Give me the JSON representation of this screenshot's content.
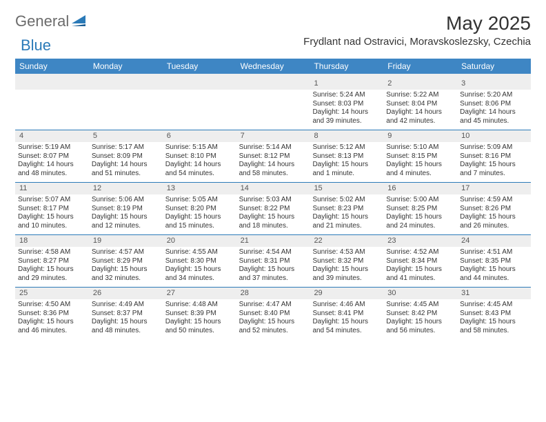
{
  "brand": {
    "text_a": "General",
    "text_b": "Blue"
  },
  "title": "May 2025",
  "location": "Frydlant nad Ostravici, Moravskoslezsky, Czechia",
  "colors": {
    "header_bg": "#3e86c4",
    "header_text": "#ffffff",
    "rule": "#2a7ab8",
    "daynum_bg": "#eeeeee",
    "body_text": "#333333"
  },
  "day_labels": [
    "Sunday",
    "Monday",
    "Tuesday",
    "Wednesday",
    "Thursday",
    "Friday",
    "Saturday"
  ],
  "weeks": [
    [
      {
        "n": "",
        "sunrise": "",
        "sunset": "",
        "daylight": ""
      },
      {
        "n": "",
        "sunrise": "",
        "sunset": "",
        "daylight": ""
      },
      {
        "n": "",
        "sunrise": "",
        "sunset": "",
        "daylight": ""
      },
      {
        "n": "",
        "sunrise": "",
        "sunset": "",
        "daylight": ""
      },
      {
        "n": "1",
        "sunrise": "Sunrise: 5:24 AM",
        "sunset": "Sunset: 8:03 PM",
        "daylight": "Daylight: 14 hours and 39 minutes."
      },
      {
        "n": "2",
        "sunrise": "Sunrise: 5:22 AM",
        "sunset": "Sunset: 8:04 PM",
        "daylight": "Daylight: 14 hours and 42 minutes."
      },
      {
        "n": "3",
        "sunrise": "Sunrise: 5:20 AM",
        "sunset": "Sunset: 8:06 PM",
        "daylight": "Daylight: 14 hours and 45 minutes."
      }
    ],
    [
      {
        "n": "4",
        "sunrise": "Sunrise: 5:19 AM",
        "sunset": "Sunset: 8:07 PM",
        "daylight": "Daylight: 14 hours and 48 minutes."
      },
      {
        "n": "5",
        "sunrise": "Sunrise: 5:17 AM",
        "sunset": "Sunset: 8:09 PM",
        "daylight": "Daylight: 14 hours and 51 minutes."
      },
      {
        "n": "6",
        "sunrise": "Sunrise: 5:15 AM",
        "sunset": "Sunset: 8:10 PM",
        "daylight": "Daylight: 14 hours and 54 minutes."
      },
      {
        "n": "7",
        "sunrise": "Sunrise: 5:14 AM",
        "sunset": "Sunset: 8:12 PM",
        "daylight": "Daylight: 14 hours and 58 minutes."
      },
      {
        "n": "8",
        "sunrise": "Sunrise: 5:12 AM",
        "sunset": "Sunset: 8:13 PM",
        "daylight": "Daylight: 15 hours and 1 minute."
      },
      {
        "n": "9",
        "sunrise": "Sunrise: 5:10 AM",
        "sunset": "Sunset: 8:15 PM",
        "daylight": "Daylight: 15 hours and 4 minutes."
      },
      {
        "n": "10",
        "sunrise": "Sunrise: 5:09 AM",
        "sunset": "Sunset: 8:16 PM",
        "daylight": "Daylight: 15 hours and 7 minutes."
      }
    ],
    [
      {
        "n": "11",
        "sunrise": "Sunrise: 5:07 AM",
        "sunset": "Sunset: 8:17 PM",
        "daylight": "Daylight: 15 hours and 10 minutes."
      },
      {
        "n": "12",
        "sunrise": "Sunrise: 5:06 AM",
        "sunset": "Sunset: 8:19 PM",
        "daylight": "Daylight: 15 hours and 12 minutes."
      },
      {
        "n": "13",
        "sunrise": "Sunrise: 5:05 AM",
        "sunset": "Sunset: 8:20 PM",
        "daylight": "Daylight: 15 hours and 15 minutes."
      },
      {
        "n": "14",
        "sunrise": "Sunrise: 5:03 AM",
        "sunset": "Sunset: 8:22 PM",
        "daylight": "Daylight: 15 hours and 18 minutes."
      },
      {
        "n": "15",
        "sunrise": "Sunrise: 5:02 AM",
        "sunset": "Sunset: 8:23 PM",
        "daylight": "Daylight: 15 hours and 21 minutes."
      },
      {
        "n": "16",
        "sunrise": "Sunrise: 5:00 AM",
        "sunset": "Sunset: 8:25 PM",
        "daylight": "Daylight: 15 hours and 24 minutes."
      },
      {
        "n": "17",
        "sunrise": "Sunrise: 4:59 AM",
        "sunset": "Sunset: 8:26 PM",
        "daylight": "Daylight: 15 hours and 26 minutes."
      }
    ],
    [
      {
        "n": "18",
        "sunrise": "Sunrise: 4:58 AM",
        "sunset": "Sunset: 8:27 PM",
        "daylight": "Daylight: 15 hours and 29 minutes."
      },
      {
        "n": "19",
        "sunrise": "Sunrise: 4:57 AM",
        "sunset": "Sunset: 8:29 PM",
        "daylight": "Daylight: 15 hours and 32 minutes."
      },
      {
        "n": "20",
        "sunrise": "Sunrise: 4:55 AM",
        "sunset": "Sunset: 8:30 PM",
        "daylight": "Daylight: 15 hours and 34 minutes."
      },
      {
        "n": "21",
        "sunrise": "Sunrise: 4:54 AM",
        "sunset": "Sunset: 8:31 PM",
        "daylight": "Daylight: 15 hours and 37 minutes."
      },
      {
        "n": "22",
        "sunrise": "Sunrise: 4:53 AM",
        "sunset": "Sunset: 8:32 PM",
        "daylight": "Daylight: 15 hours and 39 minutes."
      },
      {
        "n": "23",
        "sunrise": "Sunrise: 4:52 AM",
        "sunset": "Sunset: 8:34 PM",
        "daylight": "Daylight: 15 hours and 41 minutes."
      },
      {
        "n": "24",
        "sunrise": "Sunrise: 4:51 AM",
        "sunset": "Sunset: 8:35 PM",
        "daylight": "Daylight: 15 hours and 44 minutes."
      }
    ],
    [
      {
        "n": "25",
        "sunrise": "Sunrise: 4:50 AM",
        "sunset": "Sunset: 8:36 PM",
        "daylight": "Daylight: 15 hours and 46 minutes."
      },
      {
        "n": "26",
        "sunrise": "Sunrise: 4:49 AM",
        "sunset": "Sunset: 8:37 PM",
        "daylight": "Daylight: 15 hours and 48 minutes."
      },
      {
        "n": "27",
        "sunrise": "Sunrise: 4:48 AM",
        "sunset": "Sunset: 8:39 PM",
        "daylight": "Daylight: 15 hours and 50 minutes."
      },
      {
        "n": "28",
        "sunrise": "Sunrise: 4:47 AM",
        "sunset": "Sunset: 8:40 PM",
        "daylight": "Daylight: 15 hours and 52 minutes."
      },
      {
        "n": "29",
        "sunrise": "Sunrise: 4:46 AM",
        "sunset": "Sunset: 8:41 PM",
        "daylight": "Daylight: 15 hours and 54 minutes."
      },
      {
        "n": "30",
        "sunrise": "Sunrise: 4:45 AM",
        "sunset": "Sunset: 8:42 PM",
        "daylight": "Daylight: 15 hours and 56 minutes."
      },
      {
        "n": "31",
        "sunrise": "Sunrise: 4:45 AM",
        "sunset": "Sunset: 8:43 PM",
        "daylight": "Daylight: 15 hours and 58 minutes."
      }
    ]
  ]
}
